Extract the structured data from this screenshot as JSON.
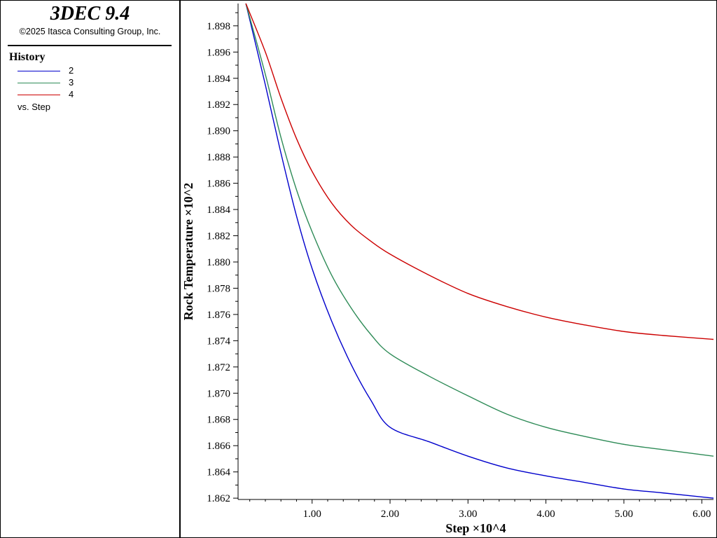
{
  "app": {
    "title": "3DEC 9.4",
    "copyright": "©2025 Itasca Consulting Group, Inc."
  },
  "legend": {
    "heading": "History",
    "items": [
      {
        "label": "2",
        "color": "#0000cc"
      },
      {
        "label": "3",
        "color": "#2e8b57"
      },
      {
        "label": "4",
        "color": "#cc0000"
      }
    ],
    "vs_label": "vs. Step"
  },
  "chart_data": {
    "type": "line",
    "xlabel": "Step ×10^4",
    "ylabel": "Rock Temperature ×10^2",
    "xlim": [
      0.05,
      6.15
    ],
    "ylim": [
      1.8619,
      1.8997
    ],
    "x_ticks": [
      "1.00",
      "2.00",
      "3.00",
      "4.00",
      "5.00",
      "6.00"
    ],
    "y_ticks": [
      "1.862",
      "1.864",
      "1.866",
      "1.868",
      "1.870",
      "1.872",
      "1.874",
      "1.876",
      "1.878",
      "1.880",
      "1.882",
      "1.884",
      "1.886",
      "1.888",
      "1.890",
      "1.892",
      "1.894",
      "1.896",
      "1.898"
    ],
    "grid": false,
    "x": [
      0.15,
      0.4,
      0.6,
      0.8,
      1.0,
      1.25,
      1.5,
      1.75,
      2.0,
      2.5,
      3.0,
      3.5,
      4.0,
      4.5,
      5.0,
      5.5,
      6.15
    ],
    "series": [
      {
        "name": "2",
        "color": "#0000cc",
        "values": [
          1.8997,
          1.8935,
          1.8883,
          1.8835,
          1.8795,
          1.8755,
          1.8722,
          1.8695,
          1.8674,
          1.8663,
          1.8652,
          1.8643,
          1.8637,
          1.8632,
          1.8627,
          1.8624,
          1.862
        ]
      },
      {
        "name": "3",
        "color": "#2e8b57",
        "values": [
          1.8997,
          1.8943,
          1.8895,
          1.8855,
          1.8823,
          1.879,
          1.8765,
          1.8745,
          1.873,
          1.8713,
          1.8698,
          1.8684,
          1.8674,
          1.8667,
          1.8661,
          1.8657,
          1.8652
        ]
      },
      {
        "name": "4",
        "color": "#cc0000",
        "values": [
          1.8997,
          1.896,
          1.8925,
          1.8894,
          1.8869,
          1.8845,
          1.8828,
          1.8816,
          1.8806,
          1.879,
          1.8776,
          1.8766,
          1.8758,
          1.8752,
          1.8747,
          1.8744,
          1.8741
        ]
      }
    ]
  }
}
